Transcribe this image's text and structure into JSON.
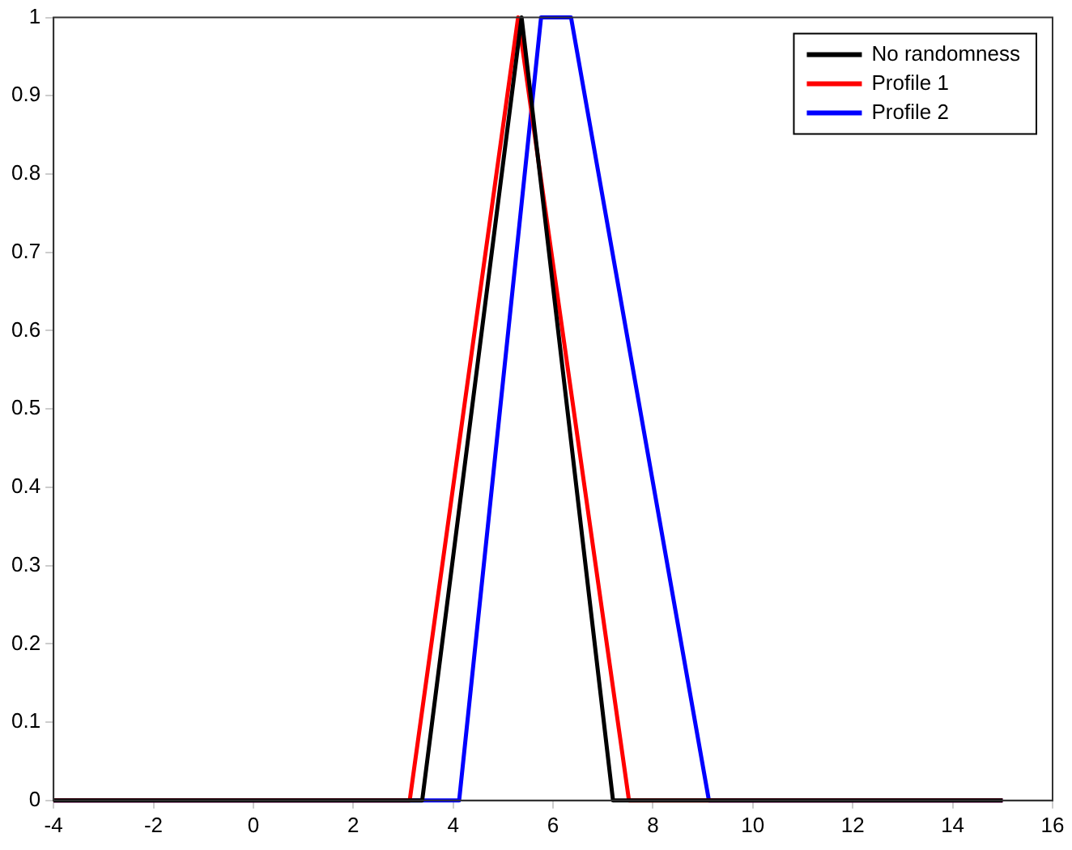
{
  "chart_data": {
    "type": "line",
    "xlim": [
      -4,
      16
    ],
    "xticks": [
      -4,
      -2,
      0,
      2,
      4,
      6,
      8,
      10,
      12,
      14,
      16
    ],
    "ylim": [
      0,
      1
    ],
    "yticks": [
      0,
      0.1,
      0.2,
      0.3,
      0.4,
      0.5,
      0.6,
      0.7,
      0.8,
      0.9,
      1
    ],
    "grid": false,
    "legend": "top right",
    "marker": "none",
    "line_style": "solid",
    "series": [
      {
        "name": "No randomness",
        "color": "#000000",
        "x": [
          -4,
          3.38,
          5.37,
          7.2,
          15
        ],
        "values": [
          0,
          0,
          1,
          0,
          0
        ]
      },
      {
        "name": "Profile 1",
        "color": "#ff0000",
        "x": [
          -4,
          3.13,
          5.3,
          7.52,
          15
        ],
        "values": [
          0,
          0,
          1,
          0,
          0
        ]
      },
      {
        "name": "Profile 2",
        "color": "#0000ff",
        "x": [
          -4,
          4.12,
          5.76,
          6.36,
          9.12,
          15
        ],
        "values": [
          0,
          0,
          1,
          1,
          0,
          0
        ]
      }
    ]
  }
}
